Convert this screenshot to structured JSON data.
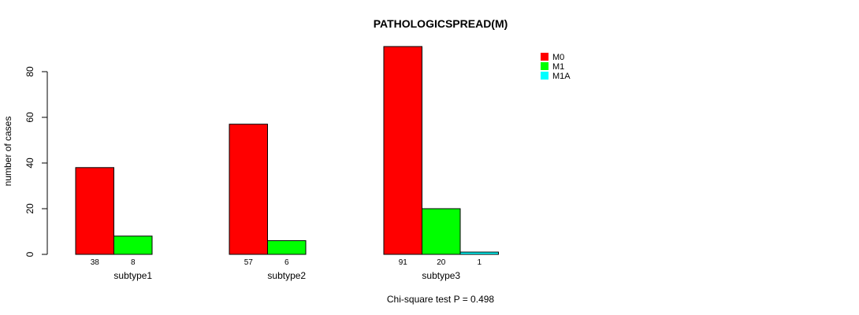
{
  "chart_data": {
    "type": "bar",
    "title": "PATHOLOGICSPREAD(M)",
    "xlabel": "",
    "ylabel": "number of cases",
    "ylim": [
      0,
      90
    ],
    "yticks": [
      0,
      20,
      40,
      60,
      80
    ],
    "categories": [
      "subtype1",
      "subtype2",
      "subtype3"
    ],
    "series": [
      {
        "name": "M0",
        "color": "#ff0000",
        "values": [
          38,
          57,
          91
        ]
      },
      {
        "name": "M1",
        "color": "#00ff00",
        "values": [
          8,
          6,
          20
        ]
      },
      {
        "name": "M1A",
        "color": "#00ffff",
        "values": [
          0,
          0,
          1
        ]
      }
    ],
    "legend_position": "top-right",
    "annotation": "Chi-square test P = 0.498",
    "grid": false
  }
}
